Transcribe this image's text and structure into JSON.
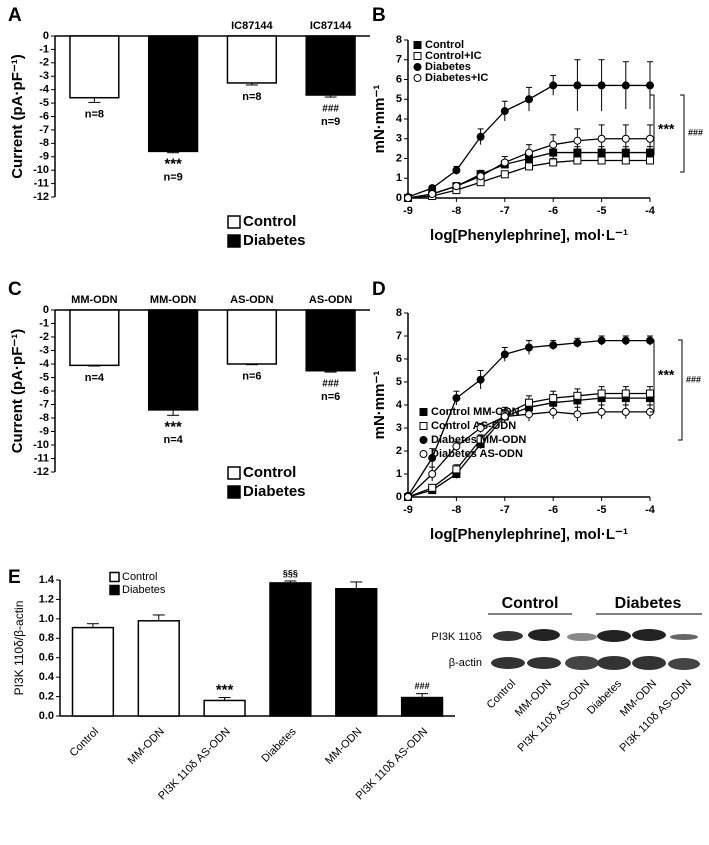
{
  "chart_data": [
    {
      "type": "bar",
      "panel": "A",
      "ylabel": "Current (pA·pF⁻¹)",
      "category_position": "top",
      "categories": [
        null,
        null,
        "IC87144",
        "IC87144"
      ],
      "values": [
        -4.6,
        -8.6,
        -3.5,
        -4.4
      ],
      "errors": [
        0.35,
        0.1,
        0.15,
        0.15
      ],
      "colors": [
        "#ffffff",
        "#000000",
        "#ffffff",
        "#000000"
      ],
      "n_labels": [
        "n=8",
        "n=9",
        "n=8",
        "n=9"
      ],
      "annotations": [
        "***",
        "###"
      ],
      "legend": [
        {
          "name": "Control",
          "color": "#ffffff"
        },
        {
          "name": "Diabetes",
          "color": "#000000"
        }
      ],
      "ylim": [
        -12,
        0
      ],
      "yticks": [
        0,
        -1,
        -2,
        -3,
        -4,
        -5,
        -6,
        -7,
        -8,
        -9,
        -10,
        -11,
        -12
      ]
    },
    {
      "type": "line",
      "panel": "B",
      "ylabel": "mN·mm⁻¹",
      "xlabel": "log[Phenylephrine], mol·L⁻¹",
      "legend_corner": "top-left",
      "x": [
        -9,
        -8.5,
        -8,
        -7.5,
        -7,
        -6.5,
        -6,
        -5.5,
        -5,
        -4.5,
        -4
      ],
      "series": [
        {
          "name": "Control",
          "color": "#000000",
          "marker": "square",
          "values": [
            0,
            0.2,
            0.6,
            1.2,
            1.7,
            2.0,
            2.3,
            2.3,
            2.3,
            2.3,
            2.3
          ],
          "errors": [
            0.05,
            0.1,
            0.1,
            0.2,
            0.2,
            0.2,
            0.3,
            0.3,
            0.3,
            0.3,
            0.3
          ]
        },
        {
          "name": "Control+IC",
          "color": "#ffffff",
          "marker": "square",
          "values": [
            0,
            0.1,
            0.4,
            0.8,
            1.2,
            1.6,
            1.8,
            1.9,
            1.9,
            1.9,
            1.9
          ],
          "errors": [
            0.05,
            0.1,
            0.1,
            0.1,
            0.1,
            0.2,
            0.2,
            0.2,
            0.2,
            0.2,
            0.2
          ]
        },
        {
          "name": "Diabetes",
          "color": "#000000",
          "marker": "circle",
          "values": [
            0.05,
            0.5,
            1.4,
            3.1,
            4.4,
            5.0,
            5.7,
            5.7,
            5.7,
            5.7,
            5.7
          ],
          "errors": [
            0.05,
            0.1,
            0.2,
            0.4,
            0.5,
            0.6,
            0.5,
            1.3,
            1.3,
            1.2,
            1.2
          ]
        },
        {
          "name": "Diabetes+IC",
          "color": "#ffffff",
          "marker": "circle",
          "values": [
            0,
            0.2,
            0.6,
            1.1,
            1.8,
            2.3,
            2.7,
            2.9,
            3.0,
            3.0,
            3.0
          ],
          "errors": [
            0.05,
            0.1,
            0.1,
            0.2,
            0.3,
            0.4,
            0.5,
            0.6,
            0.7,
            0.7,
            0.7
          ]
        }
      ],
      "annotations": [
        "***",
        "###"
      ],
      "xlim": [
        -9,
        -4
      ],
      "xticks": [
        -9,
        -8,
        -7,
        -6,
        -5,
        -4
      ],
      "ylim": [
        0,
        8
      ],
      "yticks": [
        0,
        1,
        2,
        3,
        4,
        5,
        6,
        7,
        8
      ]
    },
    {
      "type": "bar",
      "panel": "C",
      "ylabel": "Current (pA·pF⁻¹)",
      "category_position": "top",
      "categories": [
        "MM-ODN",
        "MM-ODN",
        "AS-ODN",
        "AS-ODN"
      ],
      "values": [
        -4.1,
        -7.4,
        -4.0,
        -4.5
      ],
      "errors": [
        0.05,
        0.4,
        0.05,
        0.1
      ],
      "colors": [
        "#ffffff",
        "#000000",
        "#ffffff",
        "#000000"
      ],
      "n_labels": [
        "n=4",
        "n=4",
        "n=6",
        "n=6"
      ],
      "annotations": [
        "***",
        "###"
      ],
      "legend": [
        {
          "name": "Control",
          "color": "#ffffff"
        },
        {
          "name": "Diabetes",
          "color": "#000000"
        }
      ],
      "ylim": [
        -12,
        0
      ],
      "yticks": [
        0,
        -1,
        -2,
        -3,
        -4,
        -5,
        -6,
        -7,
        -8,
        -9,
        -10,
        -11,
        -12
      ]
    },
    {
      "type": "line",
      "panel": "D",
      "ylabel": "mN·mm⁻¹",
      "xlabel": "log[Phenylephrine], mol·L⁻¹",
      "legend_corner": "bottom-right",
      "x": [
        -9,
        -8.5,
        -8,
        -7.5,
        -7,
        -6.5,
        -6,
        -5.5,
        -5,
        -4.5,
        -4
      ],
      "series": [
        {
          "name": "Control MM-ODN",
          "color": "#000000",
          "marker": "square",
          "values": [
            0,
            0.3,
            1.0,
            2.3,
            3.5,
            3.9,
            4.1,
            4.2,
            4.3,
            4.3,
            4.3
          ],
          "errors": [
            0.05,
            0.1,
            0.2,
            0.2,
            0.3,
            0.3,
            0.3,
            0.3,
            0.3,
            0.3,
            0.3
          ]
        },
        {
          "name": "Control AS-ODN",
          "color": "#ffffff",
          "marker": "square",
          "values": [
            0,
            0.4,
            1.2,
            2.5,
            3.6,
            4.1,
            4.3,
            4.4,
            4.5,
            4.5,
            4.5
          ],
          "errors": [
            0.05,
            0.1,
            0.2,
            0.2,
            0.3,
            0.3,
            0.3,
            0.3,
            0.3,
            0.3,
            0.3
          ]
        },
        {
          "name": "Diabetes MM-ODN",
          "color": "#000000",
          "marker": "circle",
          "values": [
            0.05,
            1.7,
            4.3,
            5.1,
            6.2,
            6.5,
            6.6,
            6.7,
            6.8,
            6.8,
            6.8
          ],
          "errors": [
            0.05,
            0.4,
            0.3,
            0.4,
            0.3,
            0.3,
            0.2,
            0.2,
            0.2,
            0.2,
            0.2
          ]
        },
        {
          "name": "Diabetes AS-ODN",
          "color": "#ffffff",
          "marker": "circle",
          "values": [
            0,
            1.0,
            2.2,
            3.0,
            3.5,
            3.6,
            3.7,
            3.6,
            3.7,
            3.7,
            3.7
          ],
          "errors": [
            0.05,
            0.3,
            0.2,
            0.2,
            0.2,
            0.3,
            0.3,
            0.3,
            0.3,
            0.3,
            0.3
          ]
        }
      ],
      "annotations": [
        "***",
        "###"
      ],
      "xlim": [
        -9,
        -4
      ],
      "xticks": [
        -9,
        -8,
        -7,
        -6,
        -5,
        -4
      ],
      "ylim": [
        0,
        8
      ],
      "yticks": [
        0,
        1,
        2,
        3,
        4,
        5,
        6,
        7,
        8
      ]
    },
    {
      "type": "bar",
      "panel": "E",
      "ylabel": "PI3K 110δ/β-actin",
      "category_position": "bottom",
      "categories": [
        "Control",
        "MM-ODN",
        "PI3K 110δ AS-ODN",
        "Diabetes",
        "MM-ODN",
        "PI3K 110δ AS-ODN"
      ],
      "values": [
        0.91,
        0.98,
        0.16,
        1.37,
        1.31,
        0.19
      ],
      "errors": [
        0.04,
        0.06,
        0.03,
        0.02,
        0.07,
        0.04
      ],
      "colors": [
        "#ffffff",
        "#ffffff",
        "#ffffff",
        "#000000",
        "#000000",
        "#000000"
      ],
      "annotations": [
        "***",
        "§§§",
        "###"
      ],
      "legend": [
        {
          "name": "Control",
          "color": "#ffffff"
        },
        {
          "name": "Diabetes",
          "color": "#000000"
        }
      ],
      "ylim": [
        0,
        1.4
      ],
      "yticks": [
        {
          "value": 0,
          "label": "0.0"
        },
        0.2,
        0.4,
        0.6,
        0.8,
        {
          "value": 1,
          "label": "1.0"
        },
        1.2,
        1.4
      ]
    }
  ],
  "blot": {
    "groups": [
      "Control",
      "Diabetes"
    ],
    "rows": [
      "PI3K 110δ",
      "β-actin"
    ],
    "lanes": [
      "Control",
      "MM-ODN",
      "PI3K 110δ AS-ODN",
      "Diabetes",
      "MM-ODN",
      "PI3K 110δ AS-ODN"
    ]
  }
}
